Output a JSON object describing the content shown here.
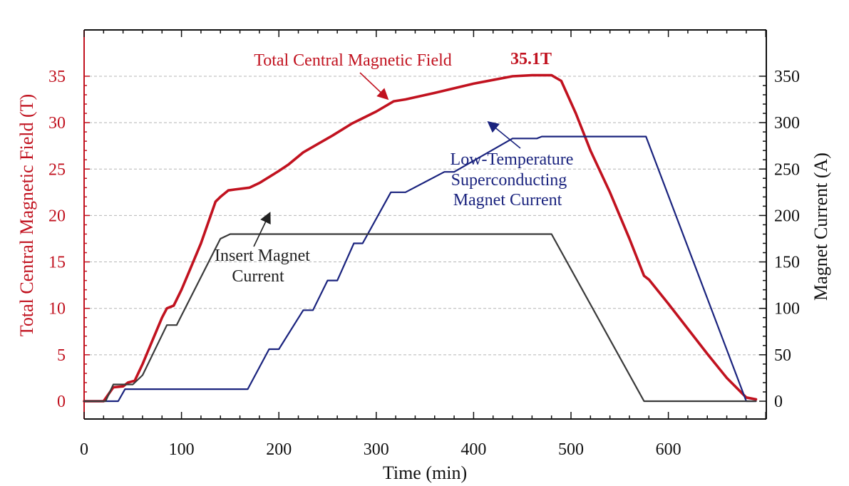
{
  "chart_data": {
    "type": "line",
    "xlabel": "Time (min)",
    "ylabel_left": "Total Central Magnetic Field (T)",
    "ylabel_right": "Magnet Current (A)",
    "xlim": [
      0,
      700
    ],
    "ylim_left": [
      0,
      35
    ],
    "ylim_right": [
      0,
      350
    ],
    "x_ticks": [
      "0",
      "100",
      "200",
      "300",
      "400",
      "500",
      "600"
    ],
    "y_left_ticks": [
      "0",
      "5",
      "10",
      "15",
      "20",
      "25",
      "30",
      "35"
    ],
    "y_right_ticks": [
      "0",
      "50",
      "100",
      "150",
      "200",
      "250",
      "300",
      "350"
    ],
    "grid": "horizontal dashed",
    "series": [
      {
        "name": "Total Central Magnetic Field",
        "axis": "left",
        "color": "#c1121f",
        "x": [
          0,
          20,
          30,
          40,
          45,
          52,
          60,
          70,
          80,
          85,
          92,
          100,
          110,
          120,
          135,
          140,
          148,
          155,
          170,
          180,
          200,
          210,
          225,
          240,
          255,
          275,
          300,
          318,
          330,
          360,
          380,
          400,
          420,
          440,
          460,
          470,
          480,
          490,
          505,
          520,
          540,
          560,
          575,
          580,
          600,
          620,
          640,
          660,
          680,
          690
        ],
        "y": [
          0,
          0,
          1.5,
          1.6,
          2.0,
          2.2,
          4.0,
          6.5,
          9.0,
          10.0,
          10.3,
          12.0,
          14.5,
          17.0,
          21.5,
          22.0,
          22.7,
          22.8,
          23.0,
          23.5,
          24.8,
          25.5,
          26.8,
          27.7,
          28.6,
          29.9,
          31.2,
          32.3,
          32.5,
          33.2,
          33.7,
          34.2,
          34.6,
          35.0,
          35.1,
          35.1,
          35.1,
          34.5,
          31.0,
          27.0,
          22.5,
          17.5,
          13.5,
          13.1,
          10.5,
          7.8,
          5.1,
          2.5,
          0.4,
          0.2
        ]
      },
      {
        "name": "Low-Temperature Superconducting Magnet Current",
        "axis": "right",
        "color": "#1a237e",
        "x": [
          0,
          35,
          42,
          168,
          190,
          200,
          225,
          235,
          250,
          260,
          277,
          286,
          315,
          330,
          370,
          380,
          440,
          465,
          470,
          577,
          680,
          690
        ],
        "y": [
          0,
          0,
          13,
          13,
          56,
          56,
          98,
          98,
          130,
          130,
          170,
          170,
          225,
          225,
          247,
          247,
          283,
          283,
          285,
          285,
          0,
          0
        ]
      },
      {
        "name": "Insert Magnet Current",
        "axis": "right",
        "color": "#3a3a3a",
        "x": [
          0,
          22,
          30,
          50,
          60,
          85,
          95,
          140,
          150,
          480,
          575,
          690
        ],
        "y": [
          0,
          0,
          18,
          18,
          28,
          82,
          82,
          175,
          180,
          180,
          0,
          0
        ]
      }
    ],
    "annotations": [
      {
        "text": "Total Central Magnetic Field",
        "color": "#c1121f"
      },
      {
        "text": "35.1T",
        "color": "#c1121f"
      },
      {
        "lines": [
          "Low-Temperature",
          "Superconducting",
          "Magnet Current"
        ],
        "color": "#1a237e"
      },
      {
        "lines": [
          "Insert Magnet",
          "Current"
        ],
        "color": "#222222"
      }
    ]
  }
}
